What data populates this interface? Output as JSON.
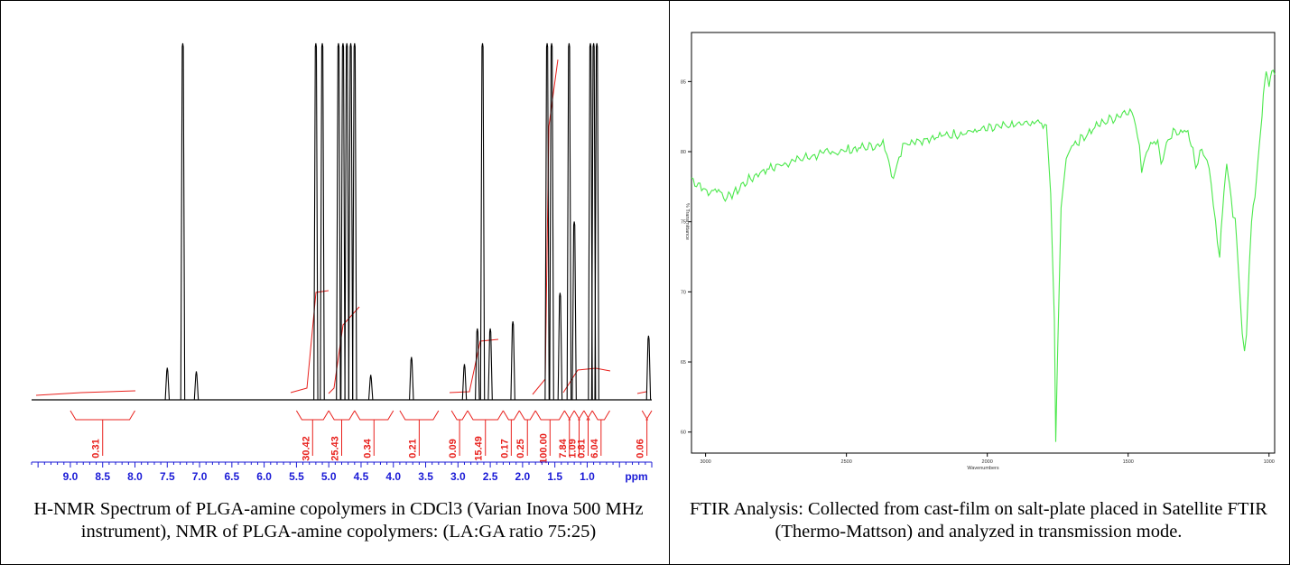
{
  "nmr_caption": "H-NMR Spectrum of PLGA-amine copolymers in CDCl3 (Varian Inova 500 MHz instrument), NMR of PLGA-amine copolymers: (LA:GA ratio 75:25)",
  "ftir_caption": "FTIR Analysis: Collected from cast-film on salt-plate placed in Satellite FTIR (Thermo-Mattson) and analyzed in transmission mode.",
  "colors": {
    "spectrum_nmr": "#000000",
    "integral": "#e8201c",
    "tick_nmr": "#1a1ad6",
    "spectrum_ftir": "#4be84b"
  },
  "chart_data": [
    {
      "type": "line",
      "xlabel": "ppm",
      "xlim": [
        9.6,
        0.0
      ],
      "x_reversed": true,
      "tick_labels": [
        "9.0",
        "8.5",
        "8.0",
        "7.5",
        "7.0",
        "6.5",
        "6.0",
        "5.5",
        "5.0",
        "4.5",
        "4.0",
        "3.5",
        "3.0",
        "2.5",
        "2.0",
        "1.5",
        "1.0"
      ],
      "peaks": [
        {
          "ppm": 7.5,
          "height": 0.09
        },
        {
          "ppm": 7.26,
          "height": 1.0
        },
        {
          "ppm": 7.05,
          "height": 0.08
        },
        {
          "ppm": 5.2,
          "height": 1.0
        },
        {
          "ppm": 5.1,
          "height": 1.0
        },
        {
          "ppm": 4.85,
          "height": 1.0
        },
        {
          "ppm": 4.78,
          "height": 1.0
        },
        {
          "ppm": 4.72,
          "height": 1.0
        },
        {
          "ppm": 4.66,
          "height": 1.0
        },
        {
          "ppm": 4.6,
          "height": 1.0
        },
        {
          "ppm": 4.35,
          "height": 0.07
        },
        {
          "ppm": 3.72,
          "height": 0.12
        },
        {
          "ppm": 2.9,
          "height": 0.1
        },
        {
          "ppm": 2.7,
          "height": 0.2
        },
        {
          "ppm": 2.62,
          "height": 1.0
        },
        {
          "ppm": 2.5,
          "height": 0.2
        },
        {
          "ppm": 2.15,
          "height": 0.22
        },
        {
          "ppm": 1.62,
          "height": 1.0
        },
        {
          "ppm": 1.55,
          "height": 1.0
        },
        {
          "ppm": 1.42,
          "height": 0.3
        },
        {
          "ppm": 1.28,
          "height": 1.0
        },
        {
          "ppm": 1.2,
          "height": 0.5
        },
        {
          "ppm": 0.95,
          "height": 1.0
        },
        {
          "ppm": 0.9,
          "height": 1.0
        },
        {
          "ppm": 0.85,
          "height": 1.0
        },
        {
          "ppm": 0.05,
          "height": 0.18
        }
      ],
      "integrals": [
        {
          "from": 9.0,
          "to": 8.0,
          "value": "0.31"
        },
        {
          "from": 5.5,
          "to": 5.0,
          "value": "30.42"
        },
        {
          "from": 5.0,
          "to": 4.6,
          "value": "25.43"
        },
        {
          "from": 4.6,
          "to": 4.0,
          "value": "0.34"
        },
        {
          "from": 3.9,
          "to": 3.3,
          "value": "0.21"
        },
        {
          "from": 3.1,
          "to": 2.85,
          "value": "0.09"
        },
        {
          "from": 2.85,
          "to": 2.3,
          "value": "15.49"
        },
        {
          "from": 2.3,
          "to": 2.05,
          "value": "0.17"
        },
        {
          "from": 2.05,
          "to": 1.8,
          "value": "0.25"
        },
        {
          "from": 1.8,
          "to": 1.35,
          "value": "100.00"
        },
        {
          "from": 1.35,
          "to": 1.2,
          "value": "7.84"
        },
        {
          "from": 1.2,
          "to": 1.05,
          "value": "1.09"
        },
        {
          "from": 1.05,
          "to": 0.92,
          "value": "0.81"
        },
        {
          "from": 0.92,
          "to": 0.65,
          "value": "6.04"
        },
        {
          "from": 0.15,
          "to": 0.0,
          "value": "0.06"
        }
      ]
    },
    {
      "type": "line",
      "xlabel": "Wavenumbers",
      "ylabel": "% Transmittance",
      "xlim": [
        3050,
        980
      ],
      "ylim": [
        58.5,
        88.5
      ],
      "x_ticks": [
        3000,
        2500,
        2000,
        1500,
        1000
      ],
      "y_ticks": [
        60,
        65,
        70,
        75,
        80,
        85
      ],
      "points": [
        [
          3050,
          78.0
        ],
        [
          3020,
          77.6
        ],
        [
          2990,
          77.0
        ],
        [
          2960,
          77.4
        ],
        [
          2930,
          76.7
        ],
        [
          2900,
          77.0
        ],
        [
          2860,
          77.8
        ],
        [
          2800,
          78.6
        ],
        [
          2700,
          79.3
        ],
        [
          2600,
          79.8
        ],
        [
          2500,
          80.1
        ],
        [
          2400,
          80.4
        ],
        [
          2370,
          80.5
        ],
        [
          2350,
          79.5
        ],
        [
          2340,
          78.3
        ],
        [
          2320,
          78.8
        ],
        [
          2300,
          80.6
        ],
        [
          2200,
          81.0
        ],
        [
          2100,
          81.3
        ],
        [
          2000,
          81.6
        ],
        [
          1900,
          81.9
        ],
        [
          1820,
          82.1
        ],
        [
          1790,
          81.9
        ],
        [
          1775,
          77.0
        ],
        [
          1762,
          68.0
        ],
        [
          1757,
          59.3
        ],
        [
          1750,
          66.0
        ],
        [
          1738,
          76.0
        ],
        [
          1720,
          79.5
        ],
        [
          1700,
          80.4
        ],
        [
          1650,
          81.2
        ],
        [
          1600,
          82.0
        ],
        [
          1540,
          82.5
        ],
        [
          1500,
          83.0
        ],
        [
          1480,
          82.5
        ],
        [
          1460,
          80.4
        ],
        [
          1452,
          78.8
        ],
        [
          1435,
          80.0
        ],
        [
          1420,
          80.5
        ],
        [
          1395,
          80.9
        ],
        [
          1383,
          79.0
        ],
        [
          1370,
          80.2
        ],
        [
          1340,
          81.3
        ],
        [
          1300,
          81.6
        ],
        [
          1270,
          80.4
        ],
        [
          1260,
          78.5
        ],
        [
          1245,
          80.0
        ],
        [
          1220,
          79.6
        ],
        [
          1205,
          77.5
        ],
        [
          1190,
          75.0
        ],
        [
          1183,
          73.5
        ],
        [
          1175,
          72.6
        ],
        [
          1170,
          74.5
        ],
        [
          1160,
          77.0
        ],
        [
          1150,
          79.2
        ],
        [
          1140,
          77.5
        ],
        [
          1128,
          75.5
        ],
        [
          1120,
          75.5
        ],
        [
          1110,
          72.0
        ],
        [
          1095,
          67.0
        ],
        [
          1087,
          65.4
        ],
        [
          1080,
          67.0
        ],
        [
          1070,
          72.0
        ],
        [
          1062,
          75.0
        ],
        [
          1050,
          77.0
        ],
        [
          1040,
          79.2
        ],
        [
          1030,
          81.5
        ],
        [
          1020,
          84.0
        ],
        [
          1010,
          85.5
        ],
        [
          1000,
          85.0
        ],
        [
          990,
          85.8
        ],
        [
          980,
          85.5
        ]
      ]
    }
  ]
}
